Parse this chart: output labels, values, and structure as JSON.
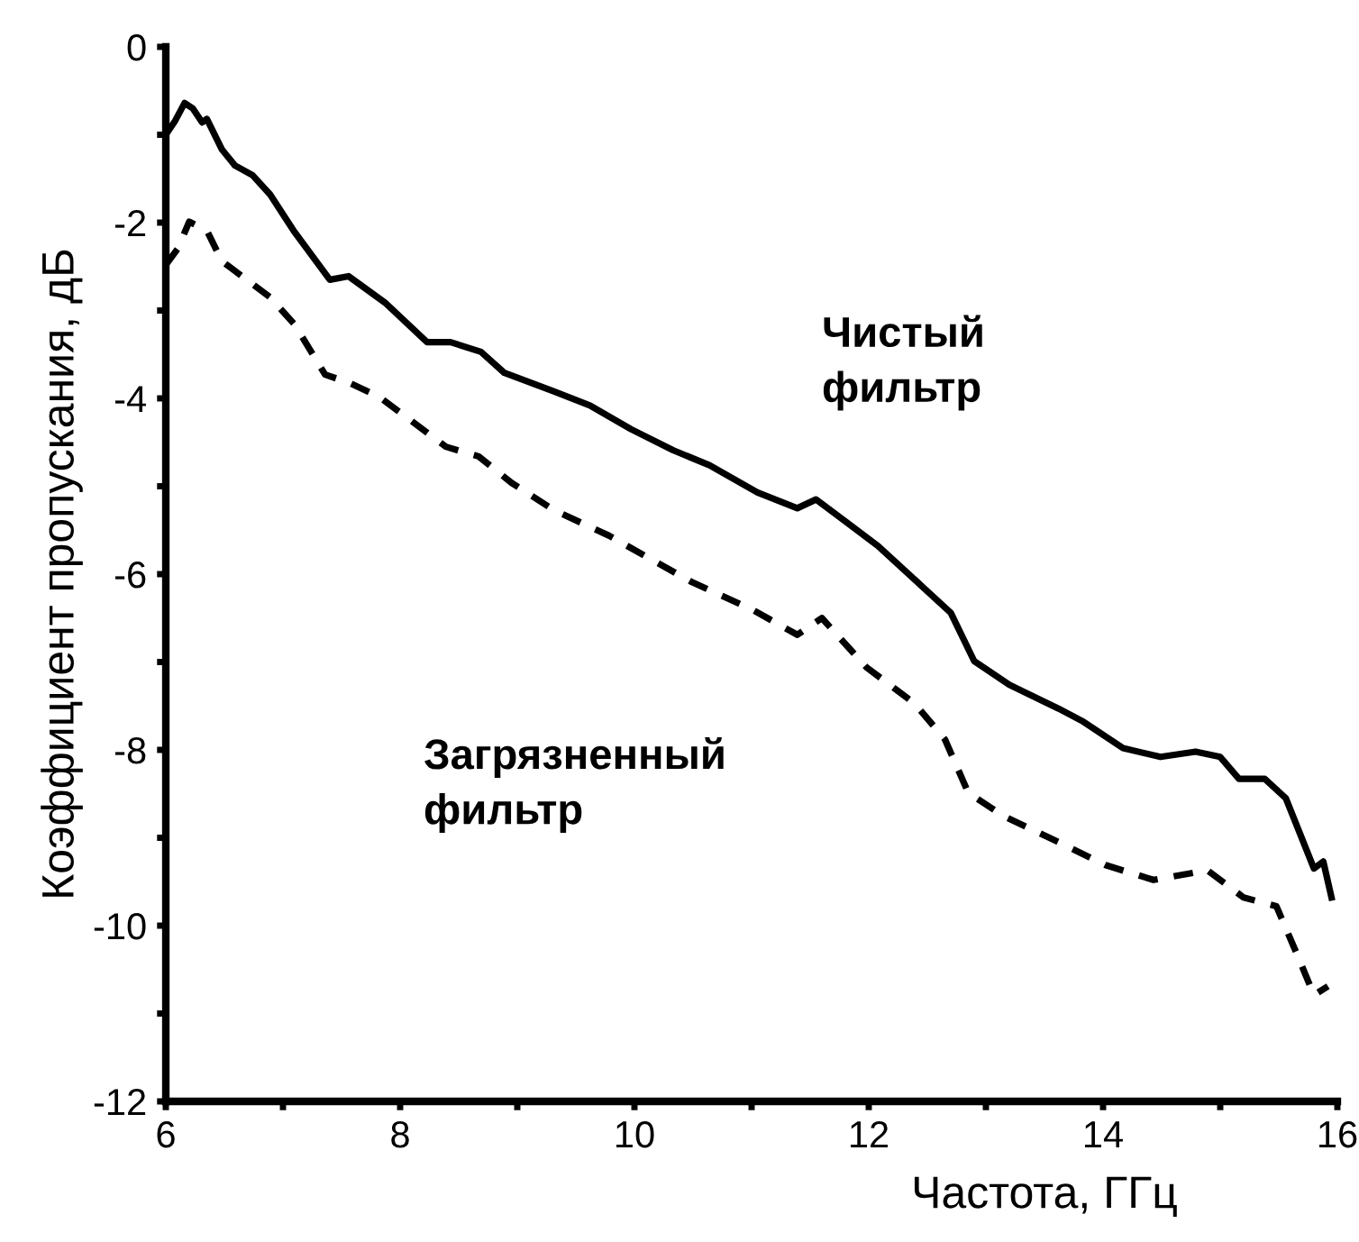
{
  "chart_data": {
    "type": "line",
    "xlabel": "Частота, ГГц",
    "ylabel": "Коэффициент пропускания, дБ",
    "xlim": [
      6,
      16
    ],
    "ylim": [
      -12,
      0
    ],
    "xticks": [
      6,
      {
        "value": 7,
        "label": null
      },
      8,
      {
        "value": 9,
        "label": null
      },
      10,
      {
        "value": 11,
        "label": null
      },
      12,
      {
        "value": 13,
        "label": null
      },
      14,
      {
        "value": 15,
        "label": null
      },
      16
    ],
    "yticks": [
      -12,
      {
        "value": -11,
        "label": null
      },
      -10,
      {
        "value": -9,
        "label": null
      },
      -8,
      {
        "value": -7,
        "label": null
      },
      -6,
      {
        "value": -5,
        "label": null
      },
      -4,
      {
        "value": -3,
        "label": null
      },
      -2,
      {
        "value": -1,
        "label": null
      },
      0
    ],
    "grid": false,
    "legend": false,
    "marker": "none",
    "series": [
      {
        "name": "Чистый\nфильтр",
        "color": "#000000",
        "line_style": "solid",
        "x": [
          6.02,
          6.08,
          6.16,
          6.23,
          6.31,
          6.35,
          6.48,
          6.59,
          6.74,
          6.89,
          7.09,
          7.4,
          7.56,
          7.87,
          8.23,
          8.43,
          8.69,
          8.89,
          9.31,
          9.62,
          9.97,
          10.33,
          10.64,
          11.05,
          11.39,
          11.55,
          11.82,
          12.08,
          12.48,
          12.7,
          12.9,
          13.2,
          13.62,
          13.82,
          14.17,
          14.49,
          14.79,
          15.0,
          15.16,
          15.38,
          15.56,
          15.8,
          15.88,
          15.95
        ],
        "values": [
          -0.96,
          -0.84,
          -0.64,
          -0.7,
          -0.86,
          -0.82,
          -1.17,
          -1.35,
          -1.46,
          -1.68,
          -2.09,
          -2.65,
          -2.61,
          -2.91,
          -3.36,
          -3.36,
          -3.47,
          -3.71,
          -3.92,
          -4.08,
          -4.35,
          -4.59,
          -4.76,
          -5.07,
          -5.25,
          -5.15,
          -5.42,
          -5.68,
          -6.17,
          -6.44,
          -6.99,
          -7.26,
          -7.53,
          -7.67,
          -7.98,
          -8.08,
          -8.02,
          -8.08,
          -8.33,
          -8.33,
          -8.55,
          -9.35,
          -9.27,
          -9.68
        ]
      },
      {
        "name": "Загрязненный\nфильтр",
        "color": "#000000",
        "line_style": "dashed",
        "x": [
          6.0,
          6.1,
          6.2,
          6.35,
          6.48,
          6.69,
          6.89,
          7.1,
          7.36,
          7.56,
          7.82,
          8.09,
          8.39,
          8.67,
          8.95,
          9.31,
          9.78,
          10.14,
          10.49,
          11.0,
          11.39,
          11.6,
          11.98,
          12.39,
          12.65,
          12.85,
          13.16,
          13.62,
          14.02,
          14.43,
          14.89,
          15.2,
          15.48,
          15.66,
          15.8,
          15.92
        ],
        "values": [
          -2.48,
          -2.3,
          -1.99,
          -2.09,
          -2.44,
          -2.65,
          -2.85,
          -3.16,
          -3.73,
          -3.82,
          -3.98,
          -4.25,
          -4.55,
          -4.66,
          -4.96,
          -5.27,
          -5.56,
          -5.83,
          -6.09,
          -6.4,
          -6.69,
          -6.5,
          -7.06,
          -7.47,
          -7.88,
          -8.49,
          -8.76,
          -9.05,
          -9.31,
          -9.48,
          -9.37,
          -9.68,
          -9.78,
          -10.34,
          -10.79,
          -10.69
        ]
      }
    ]
  }
}
